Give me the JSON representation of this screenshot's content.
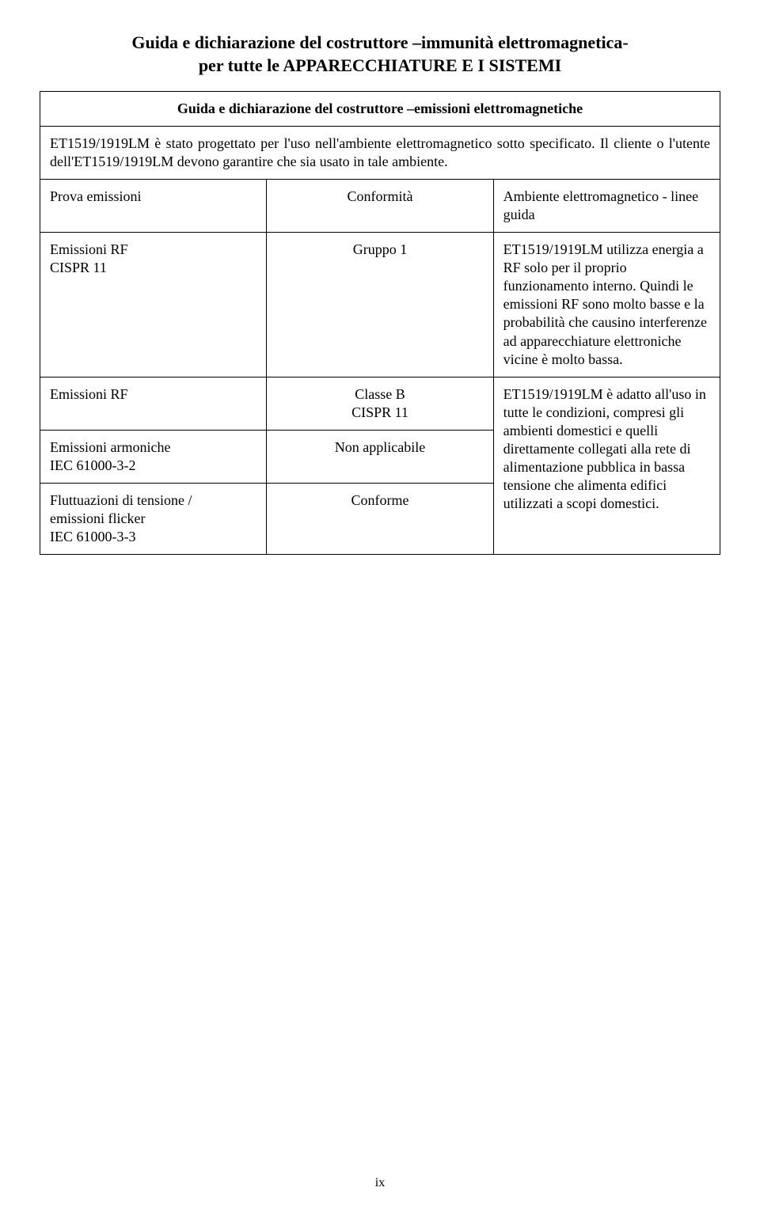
{
  "title": {
    "line1": "Guida e dichiarazione del costruttore –immunità elettromagnetica-",
    "line2": "per tutte le APPARECCHIATURE E I SISTEMI"
  },
  "subtitle": "Guida e dichiarazione del costruttore –emissioni elettromagnetiche",
  "intro": "ET1519/1919LM è stato progettato per l'uso nell'ambiente elettromagnetico sotto specificato. Il cliente o l'utente dell'ET1519/1919LM devono garantire che sia usato in tale ambiente.",
  "header": {
    "c1": "Prova emissioni",
    "c2": "Conformità",
    "c3": "Ambiente elettromagnetico - linee guida"
  },
  "row1": {
    "c1a": "Emissioni RF",
    "c1b": "CISPR 11",
    "c2": "Gruppo 1",
    "c3": "ET1519/1919LM utilizza energia a RF solo per il proprio funzionamento interno. Quindi le emissioni RF sono molto basse e la probabilità che causino interferenze ad apparecchiature elettroniche vicine è molto bassa."
  },
  "row2": {
    "c1": "Emissioni RF",
    "c2a": "Classe B",
    "c2b": "CISPR 11",
    "c3": "ET1519/1919LM è adatto all'uso in tutte le condizioni, compresi gli ambienti domestici e quelli direttamente collegati alla rete di alimentazione pubblica in bassa tensione che alimenta edifici utilizzati a scopi domestici."
  },
  "row3": {
    "c1a": "Emissioni armoniche",
    "c1b": "IEC 61000-3-2",
    "c2": "Non applicabile"
  },
  "row4": {
    "c1a": "Fluttuazioni di tensione /",
    "c1b": "emissioni flicker",
    "c1c": "IEC 61000-3-3",
    "c2": "Conforme"
  },
  "page_num": "ix",
  "colors": {
    "text": "#000000",
    "background": "#ffffff",
    "border": "#000000"
  },
  "typography": {
    "title_fontsize": 22,
    "subtitle_fontsize": 20,
    "body_fontsize": 18,
    "font_family": "Times New Roman"
  }
}
